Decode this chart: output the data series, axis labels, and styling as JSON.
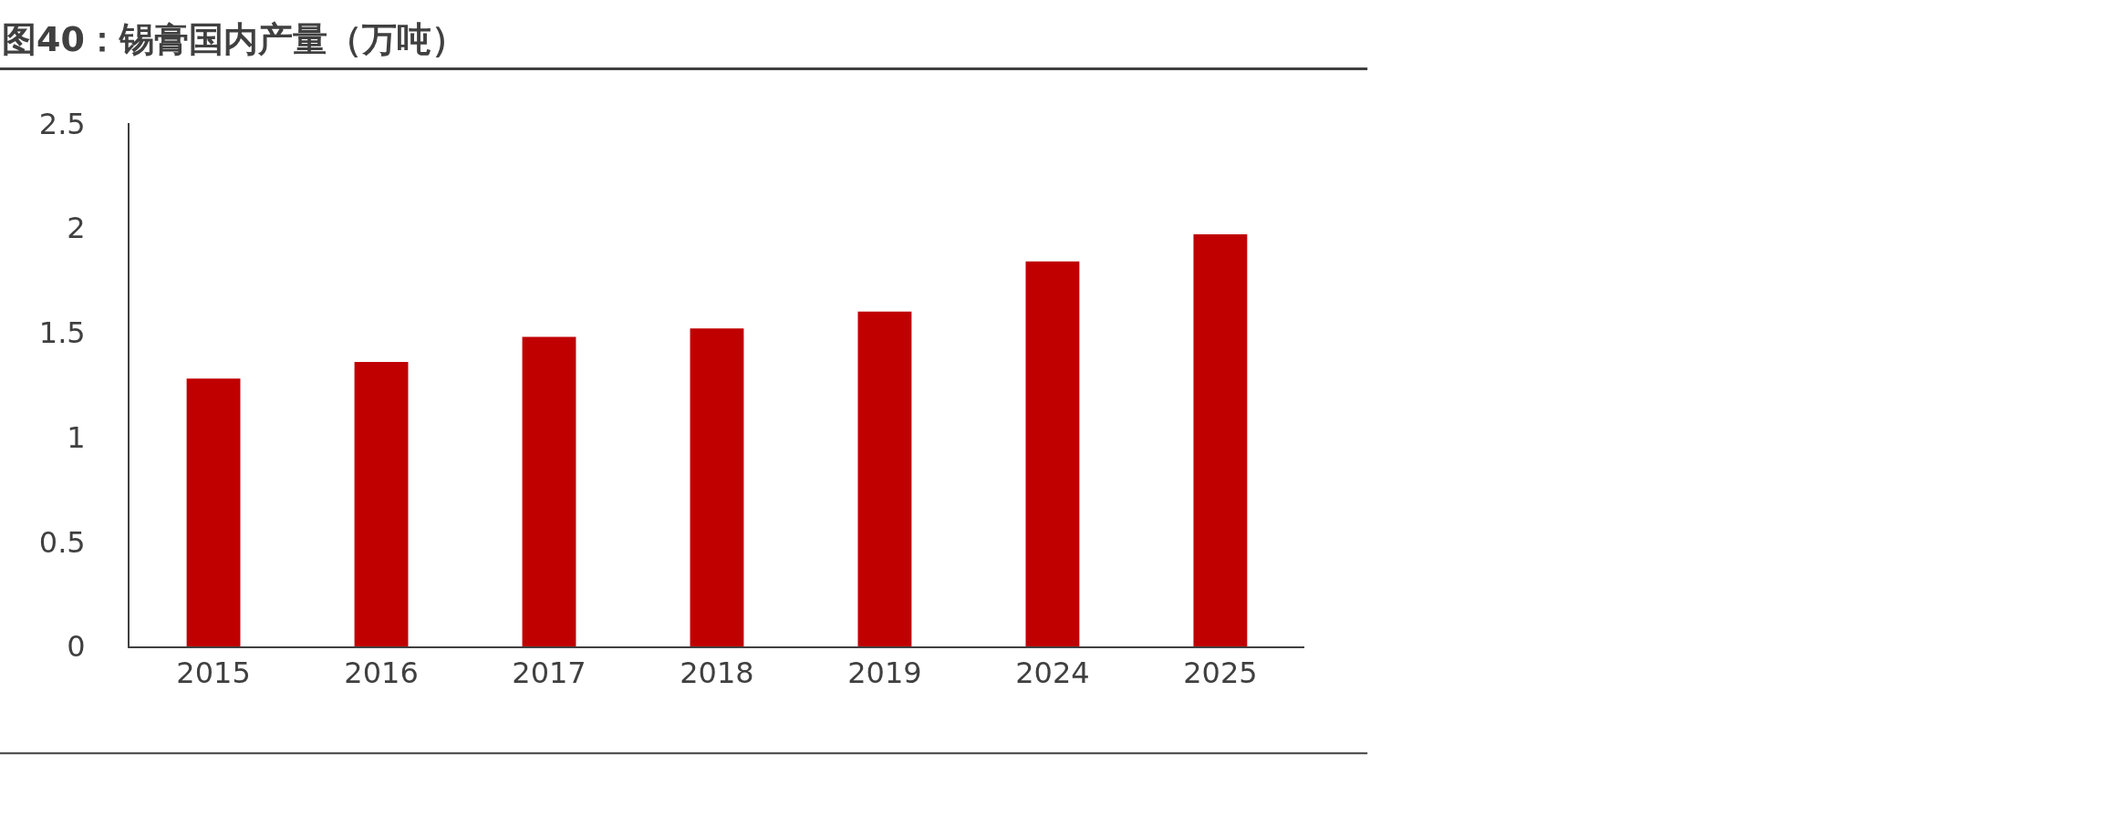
{
  "chart_data": {
    "type": "bar",
    "title": "图40：锡膏国内产量（万吨）",
    "categories": [
      "2015",
      "2016",
      "2017",
      "2018",
      "2019",
      "2024",
      "2025"
    ],
    "values": [
      1.28,
      1.36,
      1.48,
      1.52,
      1.6,
      1.84,
      1.97
    ],
    "color": "#c00000",
    "ylim": [
      0,
      2.5
    ],
    "yticks": [
      0,
      0.5,
      1,
      1.5,
      2,
      2.5
    ],
    "grid": false
  }
}
